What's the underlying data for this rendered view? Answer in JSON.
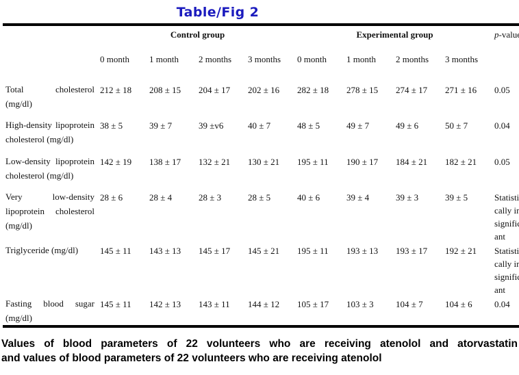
{
  "title": "Table/Fig 2",
  "colors": {
    "title_blue": "#1b1bbe",
    "text": "#111111"
  },
  "table": {
    "group_headers": {
      "control": "Control group",
      "experimental": "Experimental group",
      "p_header_italic": "p",
      "p_header_rest": "-value"
    },
    "month_headers": [
      "0 month",
      "1 month",
      "2 months",
      "3 months",
      "0 month",
      "1 month",
      "2 months",
      "3 months"
    ],
    "rows": [
      {
        "label": "Total cholesterol (mg/dl)",
        "label_lines": [
          "Total cholesterol",
          "(mg/dl)"
        ],
        "values": [
          "212 ± 18",
          "208 ± 15",
          "204 ± 17",
          "202 ± 16",
          "282 ± 18",
          "278 ± 15",
          "274 ± 17",
          "271 ± 16"
        ],
        "p_value": "0.05"
      },
      {
        "label": "High-density lipoprotein cholesterol (mg/dl)",
        "label_lines": [
          "High-density lipoprotein",
          "cholesterol (mg/dl)"
        ],
        "values": [
          "38 ± 5",
          "39 ± 7",
          "39 ±v6",
          "40 ± 7",
          "48 ± 5",
          "49 ± 7",
          "49 ± 6",
          "50 ± 7"
        ],
        "p_value": "0.04"
      },
      {
        "label": "Low-density lipoprotein cholesterol (mg/dl)",
        "label_lines": [
          "Low-density lipoprotein",
          "cholesterol (mg/dl)"
        ],
        "values": [
          "142 ± 19",
          "138 ± 17",
          "132 ± 21",
          "130 ± 21",
          "195 ± 11",
          "190 ± 17",
          "184 ± 21",
          "182 ± 21"
        ],
        "p_value": "0.05"
      },
      {
        "label": "Very low-density lipoprotein cholesterol (mg/dl)",
        "label_lines": [
          "Very low-density",
          "lipoprotein cholesterol",
          "(mg/dl)"
        ],
        "values": [
          "28 ± 6",
          "28 ± 4",
          "28 ± 3",
          "28 ± 5",
          "40 ± 6",
          "39 ± 4",
          "39 ± 3",
          "39 ± 5"
        ],
        "p_value": "Statistically insignificant"
      },
      {
        "label": "Triglyceride (mg/dl)",
        "label_lines": [
          "Triglyceride (mg/dl)"
        ],
        "values": [
          "145 ± 11",
          "143 ± 13",
          "145 ± 17",
          "145 ± 21",
          "195 ± 11",
          "193 ± 13",
          "193 ± 17",
          "192 ± 21"
        ],
        "p_value": "Statistically insignificant"
      },
      {
        "label": "Fasting blood sugar (mg/dl)",
        "label_lines": [
          "Fasting blood sugar",
          "(mg/dl)"
        ],
        "values": [
          "145 ± 11",
          "142 ± 13",
          "143 ± 11",
          "144 ± 12",
          "105 ± 17",
          "103 ± 3",
          "104 ± 7",
          "104 ± 6"
        ],
        "p_value": "0.04"
      }
    ]
  },
  "caption": {
    "line1": "Values of blood parameters of 22 volunteers who are receiving atenolol and atorvastatin",
    "line2": "and values of blood parameters of 22 volunteers who are receiving atenolol"
  }
}
